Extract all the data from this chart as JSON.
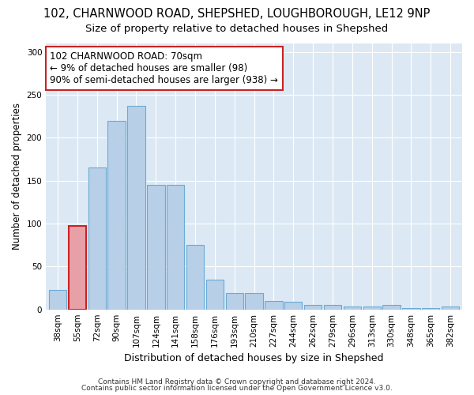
{
  "title1": "102, CHARNWOOD ROAD, SHEPSHED, LOUGHBOROUGH, LE12 9NP",
  "title2": "Size of property relative to detached houses in Shepshed",
  "xlabel": "Distribution of detached houses by size in Shepshed",
  "ylabel": "Number of detached properties",
  "footer1": "Contains HM Land Registry data © Crown copyright and database right 2024.",
  "footer2": "Contains public sector information licensed under the Open Government Licence v3.0.",
  "categories": [
    "38sqm",
    "55sqm",
    "72sqm",
    "90sqm",
    "107sqm",
    "124sqm",
    "141sqm",
    "158sqm",
    "176sqm",
    "193sqm",
    "210sqm",
    "227sqm",
    "244sqm",
    "262sqm",
    "279sqm",
    "296sqm",
    "313sqm",
    "330sqm",
    "348sqm",
    "365sqm",
    "382sqm"
  ],
  "values": [
    23,
    97,
    165,
    220,
    237,
    145,
    145,
    75,
    35,
    19,
    19,
    10,
    9,
    5,
    5,
    3,
    3,
    5,
    2,
    2,
    3
  ],
  "bar_color": "#b8cfe8",
  "bar_edge_color": "#6aaad4",
  "highlight_bar_index": 1,
  "highlight_bar_color": "#e8a0a8",
  "highlight_bar_edge_color": "#cc2222",
  "annotation_text": "102 CHARNWOOD ROAD: 70sqm\n← 9% of detached houses are smaller (98)\n90% of semi-detached houses are larger (938) →",
  "annotation_box_color": "#ffffff",
  "annotation_box_edge_color": "#cc2222",
  "ylim": [
    0,
    310
  ],
  "yticks": [
    0,
    50,
    100,
    150,
    200,
    250,
    300
  ],
  "fig_bg_color": "#ffffff",
  "plot_bg_color": "#dce9f5",
  "grid_color": "#ffffff",
  "title1_fontsize": 10.5,
  "title2_fontsize": 9.5,
  "xlabel_fontsize": 9,
  "ylabel_fontsize": 8.5,
  "tick_fontsize": 7.5,
  "footer_fontsize": 6.5,
  "annotation_fontsize": 8.5
}
